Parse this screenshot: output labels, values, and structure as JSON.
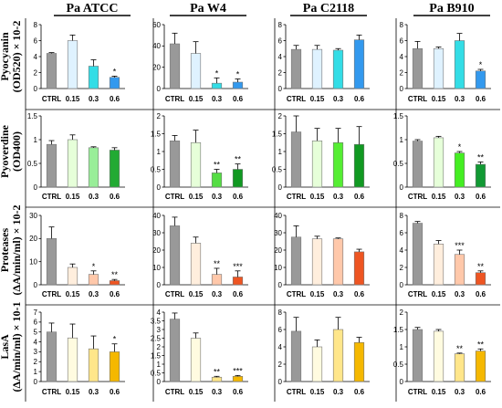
{
  "figure": {
    "column_titles": [
      "Pa ATCC",
      "Pa W4",
      "Pa C2118",
      "Pa B910"
    ],
    "row_labels": [
      {
        "line1": "Pyocyanin",
        "line2": "(OD520) × 10-2"
      },
      {
        "line1": "Pyoverdine",
        "line2": "(OD400)"
      },
      {
        "line1": "Proteases",
        "line2": "(ΔA/min/ml) × 10-2"
      },
      {
        "line1": "LasA",
        "line2": "(ΔA/min/ml) × 10-1"
      }
    ]
  },
  "chart_data": [
    {
      "type": "bar",
      "row": 0,
      "col": 0,
      "categories": [
        "CTRL",
        "0.15",
        "0.3",
        "0.6"
      ],
      "values": [
        4.4,
        6.0,
        2.8,
        1.4
      ],
      "errors": [
        0.1,
        0.7,
        0.8,
        0.15
      ],
      "significance": [
        "",
        "",
        "",
        "*"
      ],
      "ylim": [
        0,
        8
      ],
      "yticks": [
        0,
        2,
        4,
        6,
        8
      ],
      "colors": [
        "#999999",
        "#dff2ff",
        "#33dde6",
        "#3399ee"
      ]
    },
    {
      "type": "bar",
      "row": 0,
      "col": 1,
      "categories": [
        "CTRL",
        "0.15",
        "0.3",
        "0.6"
      ],
      "values": [
        42,
        33,
        5,
        6
      ],
      "errors": [
        10,
        11,
        5,
        3
      ],
      "significance": [
        "",
        "",
        "*",
        "*"
      ],
      "ylim": [
        0,
        60
      ],
      "yticks": [
        0,
        20,
        40,
        60
      ],
      "colors": [
        "#999999",
        "#dff2ff",
        "#33dde6",
        "#3399ee"
      ]
    },
    {
      "type": "bar",
      "row": 0,
      "col": 2,
      "categories": [
        "CTRL",
        "0.15",
        "0.3",
        "0.6"
      ],
      "values": [
        4.9,
        4.9,
        4.8,
        6.1
      ],
      "errors": [
        0.5,
        0.5,
        0.2,
        0.6
      ],
      "significance": [
        "",
        "",
        "",
        ""
      ],
      "ylim": [
        0,
        8
      ],
      "yticks": [
        0,
        2,
        4,
        6,
        8
      ],
      "colors": [
        "#999999",
        "#dff2ff",
        "#33dde6",
        "#3399ee"
      ]
    },
    {
      "type": "bar",
      "row": 0,
      "col": 3,
      "categories": [
        "CTRL",
        "0.15",
        "0.3",
        "0.6"
      ],
      "values": [
        5.0,
        5.0,
        6.0,
        2.2
      ],
      "errors": [
        0.9,
        0.2,
        0.9,
        0.2
      ],
      "significance": [
        "",
        "",
        "",
        "*"
      ],
      "ylim": [
        0,
        8
      ],
      "yticks": [
        0,
        2,
        4,
        6,
        8
      ],
      "colors": [
        "#999999",
        "#dff2ff",
        "#33dde6",
        "#3399ee"
      ]
    },
    {
      "type": "bar",
      "row": 1,
      "col": 0,
      "categories": [
        "CTRL",
        "0.15",
        "0.3",
        "0.6"
      ],
      "values": [
        0.9,
        1.0,
        0.83,
        0.78
      ],
      "errors": [
        0.08,
        0.1,
        0.02,
        0.05
      ],
      "significance": [
        "",
        "",
        "",
        ""
      ],
      "ylim": [
        0,
        1.5
      ],
      "yticks": [
        0,
        0.5,
        1,
        1.5
      ],
      "colors": [
        "#999999",
        "#e6ffd9",
        "#99ee99",
        "#22aa33"
      ]
    },
    {
      "type": "bar",
      "row": 1,
      "col": 1,
      "categories": [
        "CTRL",
        "0.15",
        "0.3",
        "0.6"
      ],
      "values": [
        1.3,
        1.25,
        0.4,
        0.5
      ],
      "errors": [
        0.15,
        0.35,
        0.1,
        0.15
      ],
      "significance": [
        "",
        "",
        "**",
        "**"
      ],
      "ylim": [
        0,
        2
      ],
      "yticks": [
        0,
        0.5,
        1,
        1.5,
        2
      ],
      "colors": [
        "#999999",
        "#e6ffd9",
        "#55dd44",
        "#119922"
      ]
    },
    {
      "type": "bar",
      "row": 1,
      "col": 2,
      "categories": [
        "CTRL",
        "0.15",
        "0.3",
        "0.6"
      ],
      "values": [
        1.55,
        1.3,
        1.25,
        1.2
      ],
      "errors": [
        0.45,
        0.35,
        0.4,
        0.5
      ],
      "significance": [
        "",
        "",
        "",
        ""
      ],
      "ylim": [
        0,
        2
      ],
      "yticks": [
        0,
        0.5,
        1,
        1.5,
        2
      ],
      "colors": [
        "#999999",
        "#e6ffd9",
        "#55ee33",
        "#119922"
      ]
    },
    {
      "type": "bar",
      "row": 1,
      "col": 3,
      "categories": [
        "CTRL",
        "0.15",
        "0.3",
        "0.6"
      ],
      "values": [
        0.97,
        1.04,
        0.72,
        0.48
      ],
      "errors": [
        0.03,
        0.03,
        0.03,
        0.05
      ],
      "significance": [
        "",
        "",
        "*",
        "**"
      ],
      "ylim": [
        0,
        1.5
      ],
      "yticks": [
        0,
        0.5,
        1,
        1.5
      ],
      "colors": [
        "#999999",
        "#e6ffd9",
        "#44ee22",
        "#119933"
      ]
    },
    {
      "type": "bar",
      "row": 2,
      "col": 0,
      "categories": [
        "CTRL",
        "0.15",
        "0.3",
        "0.6"
      ],
      "values": [
        20,
        7.5,
        4.5,
        1.8
      ],
      "errors": [
        5,
        1.5,
        1.5,
        0.5
      ],
      "significance": [
        "",
        "",
        "*",
        "**"
      ],
      "ylim": [
        0,
        30
      ],
      "yticks": [
        0,
        10,
        20,
        30
      ],
      "colors": [
        "#999999",
        "#ffeedd",
        "#ffc8aa",
        "#ee5522"
      ]
    },
    {
      "type": "bar",
      "row": 2,
      "col": 1,
      "categories": [
        "CTRL",
        "0.15",
        "0.3",
        "0.6"
      ],
      "values": [
        34,
        24,
        6,
        4.5
      ],
      "errors": [
        5,
        3.5,
        3.5,
        3.5
      ],
      "significance": [
        "",
        "",
        "**",
        "***"
      ],
      "ylim": [
        0,
        40
      ],
      "yticks": [
        0,
        10,
        20,
        30,
        40
      ],
      "colors": [
        "#999999",
        "#ffeedd",
        "#ffc8aa",
        "#ee5522"
      ]
    },
    {
      "type": "bar",
      "row": 2,
      "col": 2,
      "categories": [
        "CTRL",
        "0.15",
        "0.3",
        "0.6"
      ],
      "values": [
        27.5,
        26.5,
        26.5,
        19
      ],
      "errors": [
        6.5,
        1.5,
        0.5,
        1.5
      ],
      "significance": [
        "",
        "",
        "",
        ""
      ],
      "ylim": [
        0,
        40
      ],
      "yticks": [
        0,
        10,
        20,
        30,
        40
      ],
      "colors": [
        "#999999",
        "#ffeedd",
        "#ffc8aa",
        "#ee5522"
      ]
    },
    {
      "type": "bar",
      "row": 2,
      "col": 3,
      "categories": [
        "CTRL",
        "0.15",
        "0.3",
        "0.6"
      ],
      "values": [
        7.1,
        4.7,
        3.5,
        1.4
      ],
      "errors": [
        0.2,
        0.4,
        0.5,
        0.2
      ],
      "significance": [
        "",
        "",
        "***",
        "**"
      ],
      "ylim": [
        0,
        8
      ],
      "yticks": [
        0,
        2,
        4,
        6,
        8
      ],
      "colors": [
        "#999999",
        "#ffeedd",
        "#ffc8aa",
        "#ee5522"
      ]
    },
    {
      "type": "bar",
      "row": 3,
      "col": 0,
      "categories": [
        "CTRL",
        "0.15",
        "0.3",
        "0.6"
      ],
      "values": [
        5.0,
        4.4,
        3.3,
        3.0
      ],
      "errors": [
        0.9,
        1.4,
        1.3,
        0.8
      ],
      "significance": [
        "",
        "",
        "",
        "*"
      ],
      "ylim": [
        0,
        7
      ],
      "yticks": [
        0,
        1,
        2,
        3,
        4,
        5,
        6,
        7
      ],
      "colors": [
        "#999999",
        "#fffbe0",
        "#ffe68a",
        "#f5b800"
      ]
    },
    {
      "type": "bar",
      "row": 3,
      "col": 1,
      "categories": [
        "CTRL",
        "0.15",
        "0.3",
        "0.6"
      ],
      "values": [
        3.6,
        2.5,
        0.25,
        0.3
      ],
      "errors": [
        0.35,
        0.3,
        0.05,
        0.05
      ],
      "significance": [
        "",
        "",
        "**",
        "***"
      ],
      "ylim": [
        0,
        4
      ],
      "yticks": [
        0,
        0.5,
        1,
        1.5,
        2,
        2.5,
        3,
        3.5,
        4
      ],
      "colors": [
        "#999999",
        "#fffbe0",
        "#ffe68a",
        "#f5b800"
      ]
    },
    {
      "type": "bar",
      "row": 3,
      "col": 2,
      "categories": [
        "CTRL",
        "0.15",
        "0.3",
        "0.6"
      ],
      "values": [
        5.8,
        4.0,
        6.0,
        4.5
      ],
      "errors": [
        1.6,
        0.8,
        1.4,
        0.6
      ],
      "significance": [
        "",
        "",
        "",
        ""
      ],
      "ylim": [
        0,
        8
      ],
      "yticks": [
        0,
        2,
        4,
        6,
        8
      ],
      "colors": [
        "#999999",
        "#fffbe0",
        "#ffe68a",
        "#f5b800"
      ]
    },
    {
      "type": "bar",
      "row": 3,
      "col": 3,
      "categories": [
        "CTRL",
        "0.15",
        "0.3",
        "0.6"
      ],
      "values": [
        1.5,
        1.45,
        0.8,
        0.88
      ],
      "errors": [
        0.06,
        0.05,
        0.02,
        0.06
      ],
      "significance": [
        "",
        "",
        "**",
        "**"
      ],
      "ylim": [
        0,
        2
      ],
      "yticks": [
        0,
        0.5,
        1,
        1.5,
        2
      ],
      "colors": [
        "#999999",
        "#fffbe0",
        "#ffe68a",
        "#f5b800"
      ]
    }
  ]
}
